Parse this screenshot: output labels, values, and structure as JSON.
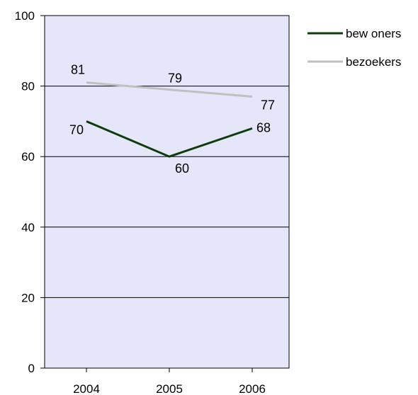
{
  "chart_data": {
    "type": "line",
    "categories": [
      "2004",
      "2005",
      "2006"
    ],
    "series": [
      {
        "name": "bew oners",
        "values": [
          70,
          60,
          68
        ],
        "color": "#0b3d0b"
      },
      {
        "name": "bezoekers",
        "values": [
          81,
          79,
          77
        ],
        "color": "#c0c0c0"
      }
    ],
    "ylim": [
      0,
      100
    ],
    "yticks": [
      "0",
      "20",
      "40",
      "60",
      "80",
      "100"
    ],
    "grid": true,
    "plot_background": "#e6e6fa",
    "legend_position": "top-right"
  }
}
